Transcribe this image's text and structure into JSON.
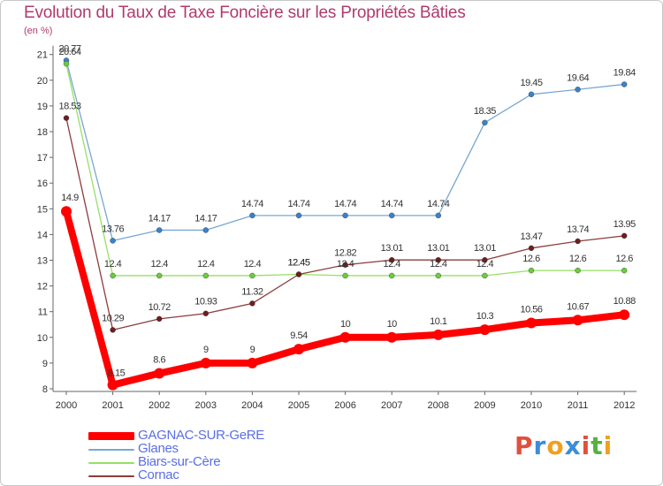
{
  "chart_data": {
    "type": "line",
    "title": "Evolution du Taux de Taxe Foncière sur les Propriétés Bâties",
    "ylabel": "(en %)",
    "xlabel": "",
    "ylim": [
      8,
      21
    ],
    "yticks": [
      8,
      9,
      10,
      11,
      12,
      13,
      14,
      15,
      16,
      17,
      18,
      19,
      20,
      21
    ],
    "categories": [
      "2000",
      "2001",
      "2002",
      "2003",
      "2004",
      "2005",
      "2006",
      "2007",
      "2008",
      "2009",
      "2010",
      "2011",
      "2012"
    ],
    "series": [
      {
        "name": "GAGNAC-SUR-GeRE",
        "color": "#ff0000",
        "marker_color": "#ff0000",
        "values": [
          14.9,
          8.15,
          8.6,
          9,
          9,
          9.54,
          10,
          10,
          10.1,
          10.3,
          10.56,
          10.67,
          10.88
        ],
        "labels": [
          "14.9",
          "8.15",
          "8.6",
          "9",
          "9",
          "9.54",
          "10",
          "10",
          "10.1",
          "10.3",
          "10.56",
          "10.67",
          "10.88"
        ]
      },
      {
        "name": "Glanes",
        "color": "#78a8d2",
        "marker_color": "#3a82c8",
        "values": [
          20.77,
          13.76,
          14.17,
          14.17,
          14.74,
          14.74,
          14.74,
          14.74,
          14.74,
          18.35,
          19.45,
          19.64,
          19.84
        ],
        "labels": [
          "20.77",
          "13.76",
          "14.17",
          "14.17",
          "14.74",
          "14.74",
          "14.74",
          "14.74",
          "14.74",
          "18.35",
          "19.45",
          "19.64",
          "19.84"
        ]
      },
      {
        "name": "Biars-sur-Cère",
        "color": "#96e064",
        "marker_color": "#6ccc3c",
        "values": [
          20.64,
          12.4,
          12.4,
          12.4,
          12.4,
          12.45,
          12.4,
          12.4,
          12.4,
          12.4,
          12.6,
          12.6,
          12.6
        ],
        "labels": [
          "20.64",
          "12.4",
          "12.4",
          "12.4",
          "12.4",
          "12.45",
          "12.4",
          "12.4",
          "12.4",
          "12.4",
          "12.6",
          "12.6",
          "12.6"
        ]
      },
      {
        "name": "Cornac",
        "color": "#8c3c3c",
        "marker_color": "#6e1e1e",
        "values": [
          18.53,
          10.29,
          10.72,
          10.93,
          11.32,
          12.45,
          12.82,
          13.01,
          13.01,
          13.01,
          13.47,
          13.74,
          13.95
        ],
        "labels": [
          "18.53",
          "10.29",
          "10.72",
          "10.93",
          "11.32",
          "12.45",
          "12.82",
          "13.01",
          "13.01",
          "13.01",
          "13.47",
          "13.74",
          "13.95"
        ]
      }
    ],
    "legend_position": "bottom-left",
    "grid": false
  },
  "brand": {
    "letters": [
      "P",
      "r",
      "o",
      "x",
      "i",
      "t",
      "i"
    ],
    "colors": [
      "#e0503c",
      "#3a8ed8",
      "#f0a020",
      "#3a8ed8",
      "#e0503c",
      "#58b040",
      "#f0a020"
    ]
  }
}
